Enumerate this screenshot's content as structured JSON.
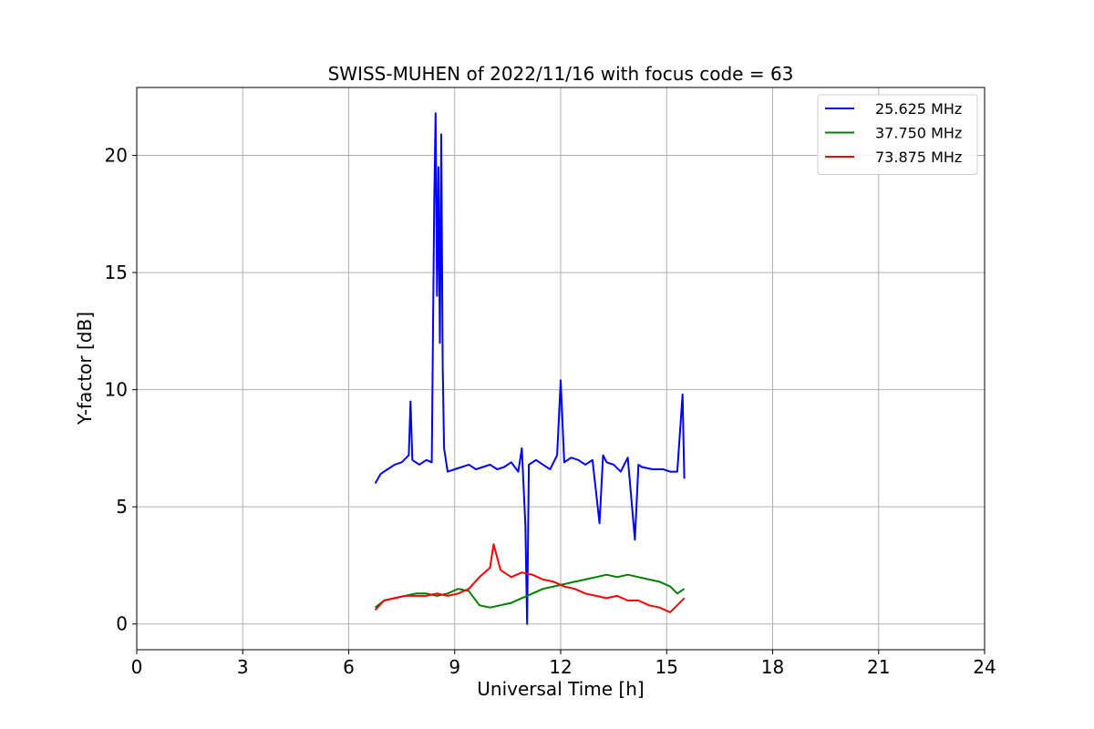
{
  "chart_data": {
    "type": "line",
    "title": "SWISS-MUHEN of 2022/11/16 with focus code = 63",
    "xlabel": "Universal Time [h]",
    "ylabel": "Y-factor [dB]",
    "xlim": [
      0,
      24
    ],
    "ylim": [
      -1.1,
      22.9
    ],
    "xticks": [
      0,
      3,
      6,
      9,
      12,
      15,
      18,
      21,
      24
    ],
    "yticks": [
      0,
      5,
      10,
      15,
      20
    ],
    "grid": true,
    "legend_position": "top-right",
    "series": [
      {
        "name": "25.625 MHz",
        "color": "#0000ff",
        "x": [
          6.75,
          6.9,
          7.1,
          7.3,
          7.5,
          7.7,
          7.75,
          7.8,
          8.0,
          8.2,
          8.35,
          8.42,
          8.46,
          8.5,
          8.54,
          8.58,
          8.62,
          8.66,
          8.7,
          8.8,
          9.0,
          9.2,
          9.4,
          9.6,
          9.8,
          10.0,
          10.2,
          10.4,
          10.6,
          10.8,
          10.9,
          11.0,
          11.05,
          11.1,
          11.3,
          11.5,
          11.7,
          11.9,
          12.0,
          12.1,
          12.3,
          12.5,
          12.7,
          12.9,
          13.1,
          13.2,
          13.3,
          13.5,
          13.7,
          13.9,
          14.1,
          14.2,
          14.3,
          14.6,
          14.9,
          15.1,
          15.3,
          15.45,
          15.5
        ],
        "y": [
          6.0,
          6.4,
          6.6,
          6.8,
          6.9,
          7.2,
          9.5,
          7.0,
          6.8,
          7.0,
          6.9,
          18.0,
          21.8,
          14.0,
          19.5,
          12.0,
          20.9,
          11.0,
          7.5,
          6.5,
          6.6,
          6.7,
          6.8,
          6.6,
          6.7,
          6.8,
          6.6,
          6.7,
          6.9,
          6.5,
          7.5,
          4.2,
          0.0,
          6.8,
          7.0,
          6.8,
          6.6,
          7.2,
          10.4,
          6.9,
          7.1,
          7.0,
          6.8,
          7.0,
          4.3,
          7.2,
          6.9,
          6.8,
          6.5,
          7.1,
          3.6,
          6.8,
          6.7,
          6.6,
          6.6,
          6.5,
          6.5,
          9.8,
          6.2
        ]
      },
      {
        "name": "37.750 MHz",
        "color": "#008000",
        "x": [
          6.75,
          7.0,
          7.3,
          7.6,
          7.9,
          8.2,
          8.5,
          8.8,
          9.1,
          9.4,
          9.7,
          10.0,
          10.3,
          10.6,
          10.9,
          11.2,
          11.5,
          11.8,
          12.1,
          12.4,
          12.7,
          13.0,
          13.3,
          13.6,
          13.9,
          14.2,
          14.5,
          14.8,
          15.1,
          15.3,
          15.5
        ],
        "y": [
          0.7,
          1.0,
          1.1,
          1.2,
          1.3,
          1.3,
          1.2,
          1.3,
          1.5,
          1.4,
          0.8,
          0.7,
          0.8,
          0.9,
          1.1,
          1.3,
          1.5,
          1.6,
          1.7,
          1.8,
          1.9,
          2.0,
          2.1,
          2.0,
          2.1,
          2.0,
          1.9,
          1.8,
          1.6,
          1.3,
          1.5
        ]
      },
      {
        "name": "73.875 MHz",
        "color": "#ff0000",
        "x": [
          6.75,
          7.0,
          7.3,
          7.6,
          7.9,
          8.2,
          8.5,
          8.8,
          9.1,
          9.4,
          9.7,
          10.0,
          10.1,
          10.3,
          10.6,
          10.9,
          11.2,
          11.5,
          11.8,
          12.1,
          12.4,
          12.7,
          13.0,
          13.3,
          13.6,
          13.9,
          14.2,
          14.5,
          14.8,
          15.1,
          15.3,
          15.5
        ],
        "y": [
          0.6,
          1.0,
          1.1,
          1.2,
          1.2,
          1.2,
          1.3,
          1.2,
          1.3,
          1.5,
          2.0,
          2.4,
          3.4,
          2.3,
          2.0,
          2.2,
          2.1,
          1.9,
          1.8,
          1.6,
          1.5,
          1.3,
          1.2,
          1.1,
          1.2,
          1.0,
          1.0,
          0.8,
          0.7,
          0.5,
          0.8,
          1.1
        ]
      }
    ]
  }
}
